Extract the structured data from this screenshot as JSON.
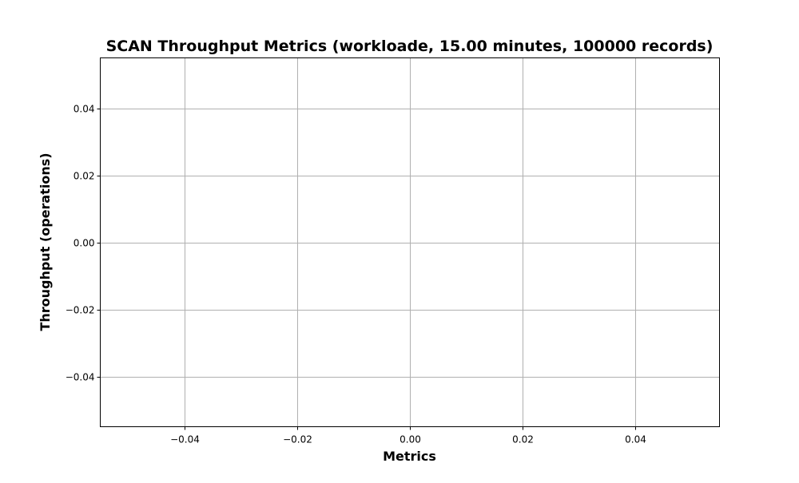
{
  "chart_data": {
    "type": "line",
    "title": "SCAN Throughput Metrics (workloade, 15.00 minutes, 100000 records)",
    "xlabel": "Metrics",
    "ylabel": "Throughput (operations)",
    "xlim": [
      -0.055,
      0.055
    ],
    "ylim": [
      -0.055,
      0.055
    ],
    "x_ticks": [
      -0.04,
      -0.02,
      0.0,
      0.02,
      0.04
    ],
    "y_ticks": [
      -0.04,
      -0.02,
      0.0,
      0.02,
      0.04
    ],
    "x_tick_labels": [
      "−0.04",
      "−0.02",
      "0.00",
      "0.02",
      "0.04"
    ],
    "y_tick_labels": [
      "−0.04",
      "−0.02",
      "0.00",
      "0.02",
      "0.04"
    ],
    "grid": true,
    "series": []
  }
}
